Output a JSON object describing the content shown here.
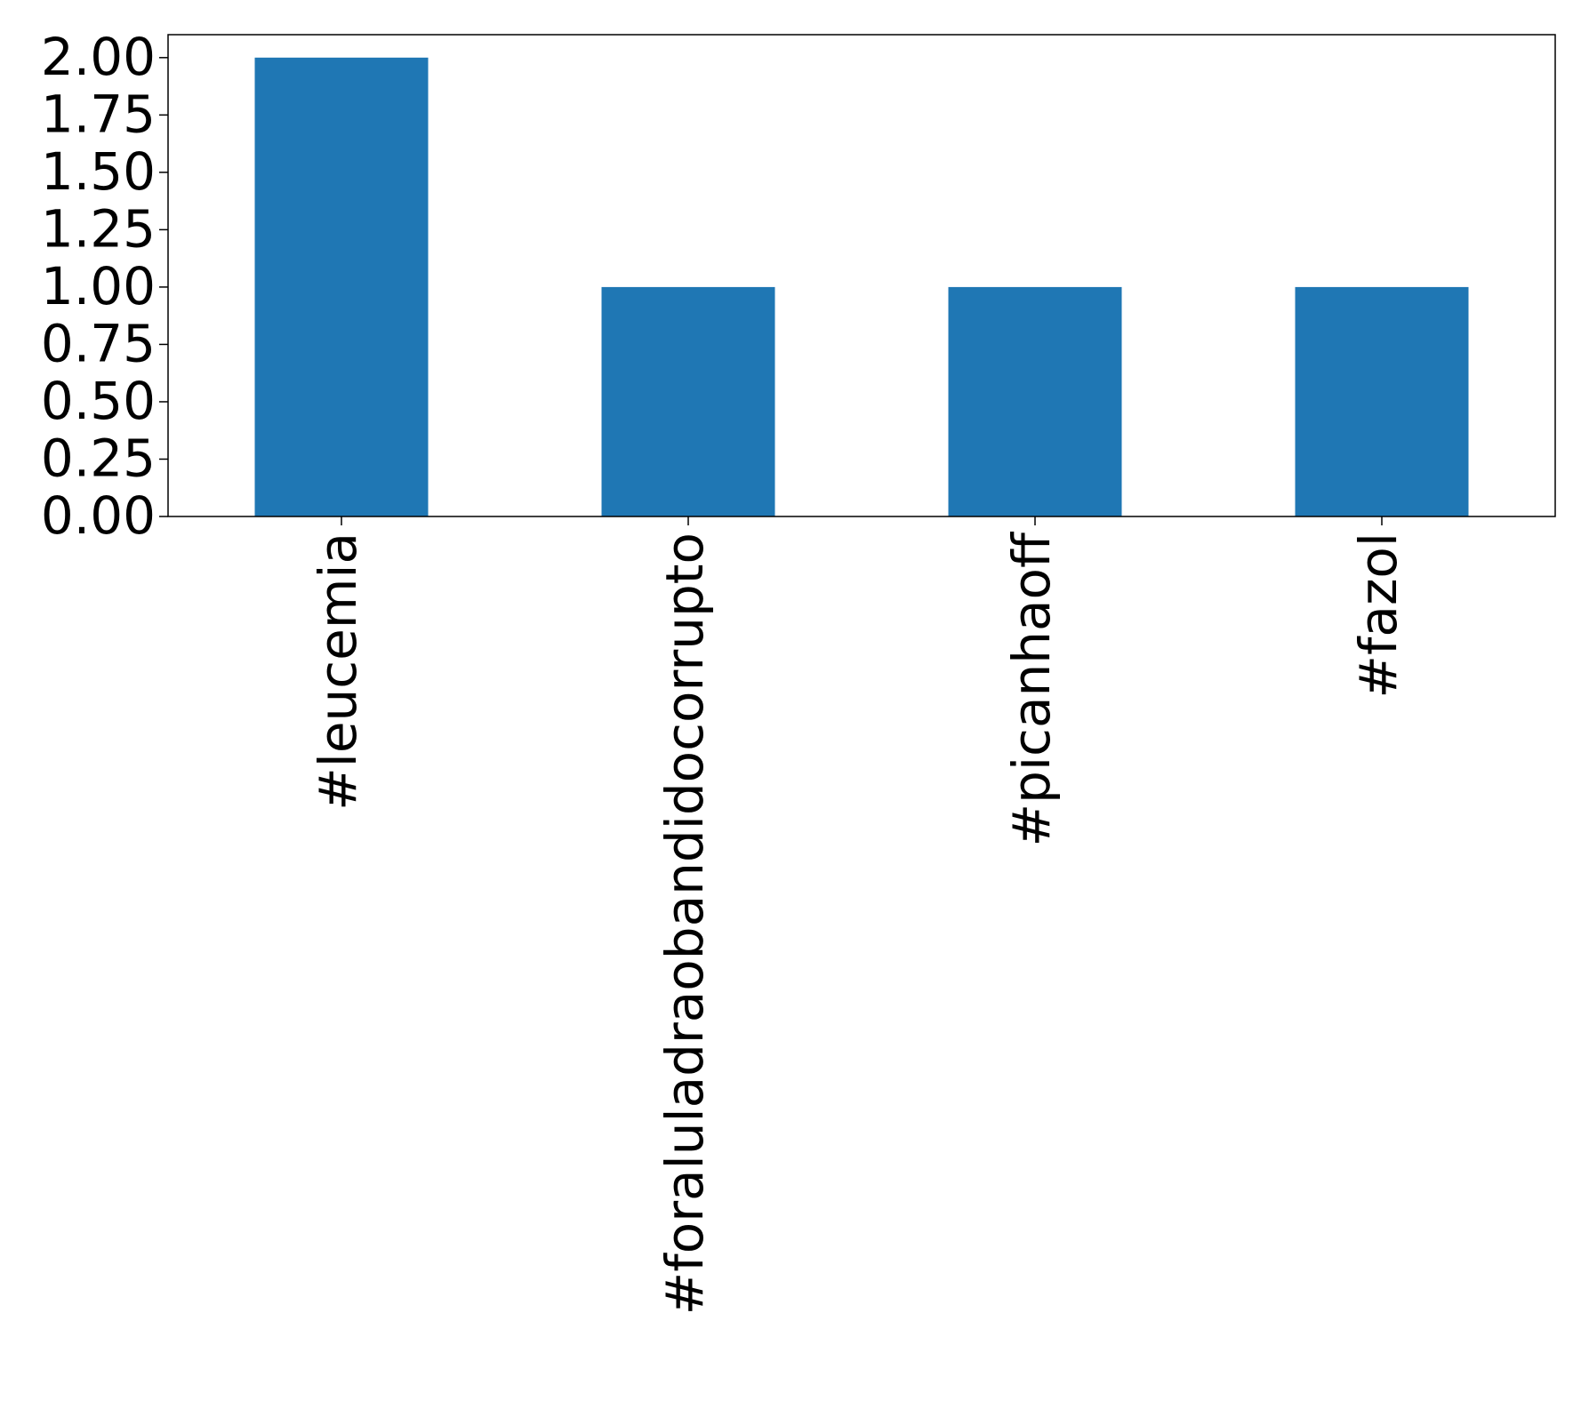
{
  "chart_data": {
    "type": "bar",
    "categories": [
      "#leucemia",
      "#foraluladraobandidocorrupto",
      "#picanhaoff",
      "#fazol"
    ],
    "values": [
      2,
      1,
      1,
      1
    ],
    "color": "#1f77b4",
    "ylim": [
      0,
      2.1
    ],
    "yticks": [
      {
        "value": 0,
        "label": "0.00"
      },
      {
        "value": 0.25,
        "label": "0.25"
      },
      {
        "value": 0.5,
        "label": "0.50"
      },
      {
        "value": 0.75,
        "label": "0.75"
      },
      {
        "value": 1,
        "label": "1.00"
      },
      {
        "value": 1.25,
        "label": "1.25"
      },
      {
        "value": 1.5,
        "label": "1.50"
      },
      {
        "value": 1.75,
        "label": "1.75"
      },
      {
        "value": 2,
        "label": "2.00"
      }
    ],
    "grid": false
  }
}
